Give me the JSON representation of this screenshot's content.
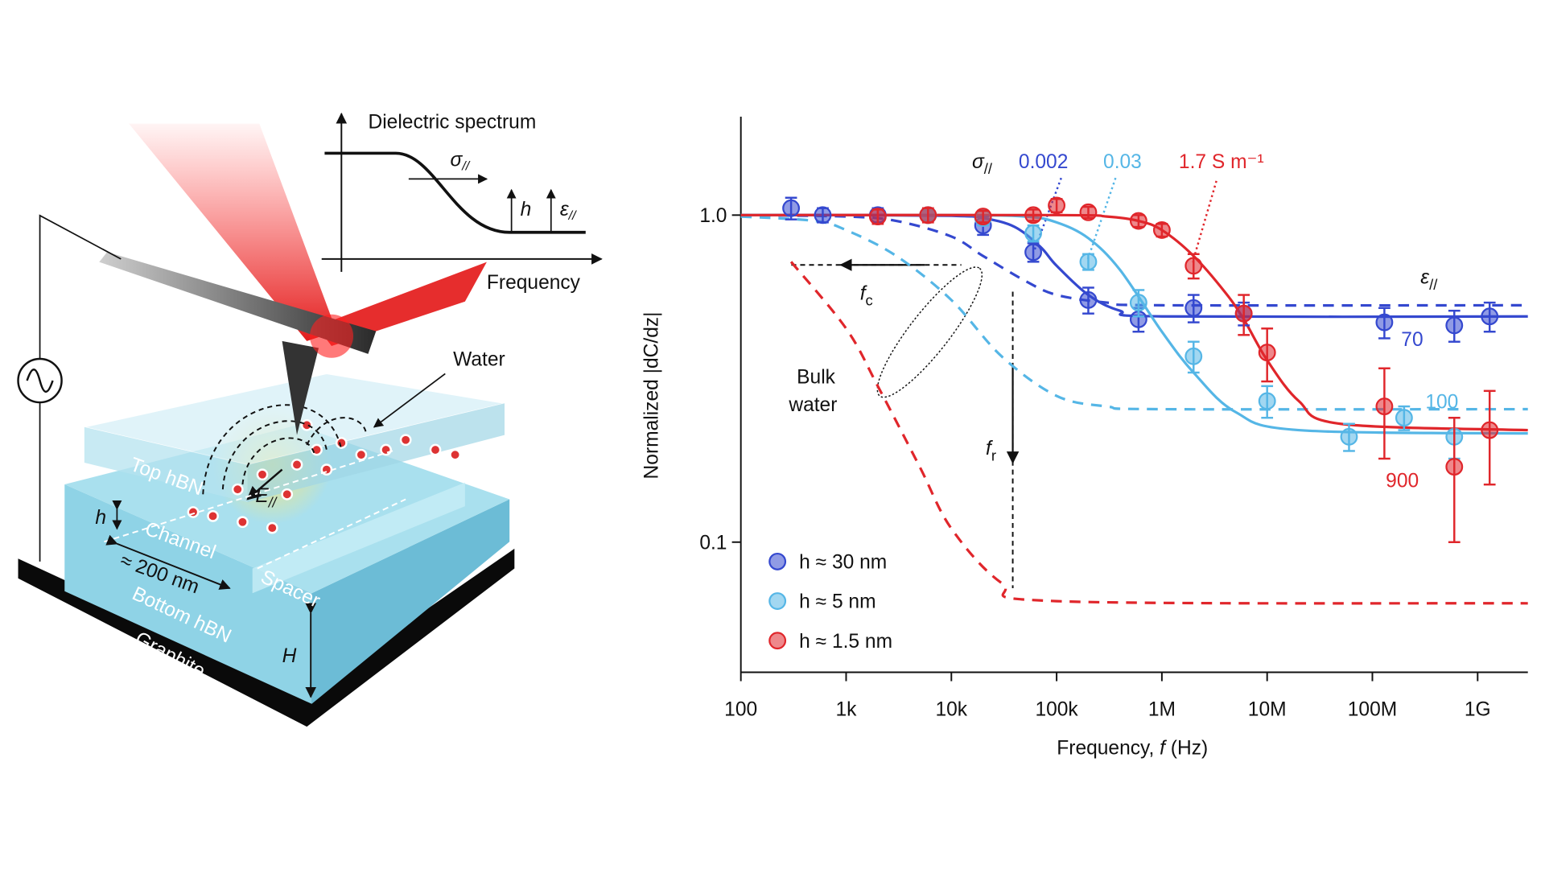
{
  "diagram": {
    "inset_title": "Dielectric spectrum",
    "inset_x_label": "Frequency",
    "inset_sigma": {
      "text": "σ",
      "subscript": "//"
    },
    "inset_h": "h",
    "inset_eps": {
      "text": "ε",
      "subscript": "//"
    },
    "water": "Water",
    "field": {
      "text": "E",
      "subscript": "//"
    },
    "top_hbn": "Top hBN",
    "h": "h",
    "channel": "Channel",
    "channel_width": "≈ 200 nm",
    "spacer": "Spacer",
    "bottom_hbn": "Bottom hBN",
    "graphite": "Graphite",
    "H": "H"
  },
  "chart_data": {
    "type": "scatter",
    "x_label": [
      "Frequency, ",
      "f",
      " (Hz)"
    ],
    "y_label": "Normalized |dC/dz|",
    "xscale": "log",
    "yscale": "log",
    "xlim": [
      100,
      3000000000
    ],
    "ylim": [
      0.04,
      2
    ],
    "xticks": [
      100,
      {
        "value": 1000,
        "label": "1k"
      },
      {
        "value": 10000,
        "label": "10k"
      },
      {
        "value": 100000,
        "label": "100k"
      },
      {
        "value": 1000000,
        "label": "1M"
      },
      {
        "value": 10000000,
        "label": "10M"
      },
      {
        "value": 100000000,
        "label": "100M"
      },
      {
        "value": 1000000000,
        "label": "1G"
      }
    ],
    "yticks": [
      {
        "value": 1,
        "label": "1.0"
      },
      0.1
    ],
    "legend": "lower left",
    "series": [
      {
        "name": "h ≈ 30 nm",
        "color": "#3448cf",
        "x": [
          300,
          600,
          2000,
          6000,
          20000,
          60000,
          200000,
          600000,
          2000000,
          6000000,
          130000000,
          600000000,
          1300000000
        ],
        "values": [
          1.05,
          1.0,
          1.0,
          1.0,
          0.93,
          0.77,
          0.55,
          0.48,
          0.52,
          0.5,
          0.47,
          0.46,
          0.49
        ],
        "errors": [
          0.08,
          0.05,
          0.05,
          0.04,
          0.06,
          0.05,
          0.05,
          0.04,
          0.05,
          0.04,
          0.05,
          0.05,
          0.05
        ],
        "fit": {
          "x": [
            100,
            1000,
            10000,
            20000,
            40000,
            70000,
            100000,
            200000,
            400000,
            1000000,
            3000000000
          ],
          "values": [
            1,
            1,
            0.995,
            0.98,
            0.92,
            0.8,
            0.7,
            0.57,
            0.51,
            0.49,
            0.49
          ]
        },
        "model": {
          "x": [
            100,
            1000,
            3000,
            10000,
            20000,
            50000,
            100000,
            300000,
            1000000,
            3000000000
          ],
          "values": [
            1,
            0.99,
            0.96,
            0.86,
            0.75,
            0.63,
            0.57,
            0.54,
            0.53,
            0.53
          ]
        }
      },
      {
        "name": "h ≈ 5 nm",
        "color": "#55b6e6",
        "x": [
          6000,
          20000,
          60000,
          200000,
          600000,
          2000000,
          10000000,
          60000000,
          200000000,
          600000000
        ],
        "values": [
          1.0,
          0.98,
          0.88,
          0.72,
          0.54,
          0.37,
          0.27,
          0.21,
          0.24,
          0.21
        ],
        "errors": [
          0.04,
          0.05,
          0.05,
          0.04,
          0.05,
          0.04,
          0.03,
          0.02,
          0.02,
          0.03
        ],
        "fit": {
          "x": [
            100,
            10000,
            50000,
            100000,
            200000,
            400000,
            1000000,
            2000000,
            5000000,
            20000000,
            3000000000
          ],
          "values": [
            1,
            1,
            0.99,
            0.95,
            0.85,
            0.68,
            0.44,
            0.33,
            0.25,
            0.22,
            0.215
          ]
        },
        "model": {
          "x": [
            100,
            500,
            1000,
            3000,
            10000,
            30000,
            100000,
            300000,
            1000000,
            3000000000
          ],
          "values": [
            0.99,
            0.96,
            0.9,
            0.75,
            0.55,
            0.37,
            0.28,
            0.26,
            0.255,
            0.255
          ]
        }
      },
      {
        "name": "h ≈ 1.5 nm",
        "color": "#e0262b",
        "x": [
          2000,
          6000,
          20000,
          60000,
          100000,
          200000,
          600000,
          1000000,
          2000000,
          6000000,
          10000000,
          130000000,
          600000000,
          1300000000
        ],
        "values": [
          0.99,
          1.0,
          0.99,
          1.0,
          1.07,
          1.02,
          0.96,
          0.9,
          0.7,
          0.5,
          0.38,
          0.26,
          0.17,
          0.22
        ],
        "errors": [
          0.05,
          0.05,
          0.04,
          0.04,
          0.05,
          0.04,
          0.04,
          0.04,
          0.06,
          0.07,
          0.07,
          0.08,
          0.07,
          0.07
        ],
        "fit": {
          "x": [
            100,
            100000,
            300000,
            600000,
            1000000,
            2000000,
            4000000,
            6000000,
            10000000,
            20000000,
            50000000,
            3000000000
          ],
          "values": [
            1,
            1,
            0.99,
            0.96,
            0.9,
            0.75,
            0.58,
            0.48,
            0.36,
            0.27,
            0.23,
            0.22
          ]
        },
        "model": {
          "x": [
            300,
            1000,
            2000,
            5000,
            10000,
            30000,
            100000,
            3000000000
          ],
          "values": [
            0.72,
            0.45,
            0.3,
            0.17,
            0.11,
            0.075,
            0.066,
            0.065
          ]
        }
      }
    ],
    "annotations": [
      {
        "text": "σ",
        "subscript": "//"
      },
      {
        "text": "0.002",
        "color": "#3448cf"
      },
      {
        "text": "0.03",
        "color": "#55b6e6"
      },
      {
        "text": "1.7 S m⁻¹",
        "color": "#e0262b"
      },
      {
        "text": "ε",
        "subscript": "//"
      },
      {
        "text": "70",
        "color": "#3448cf"
      },
      {
        "text": "100",
        "color": "#55b6e6"
      },
      {
        "text": "900",
        "color": "#e0262b"
      },
      {
        "text": "f",
        "subscript": "c"
      },
      {
        "text": "f",
        "subscript": "r"
      },
      {
        "text": "Bulk"
      },
      {
        "text": "water"
      }
    ]
  }
}
